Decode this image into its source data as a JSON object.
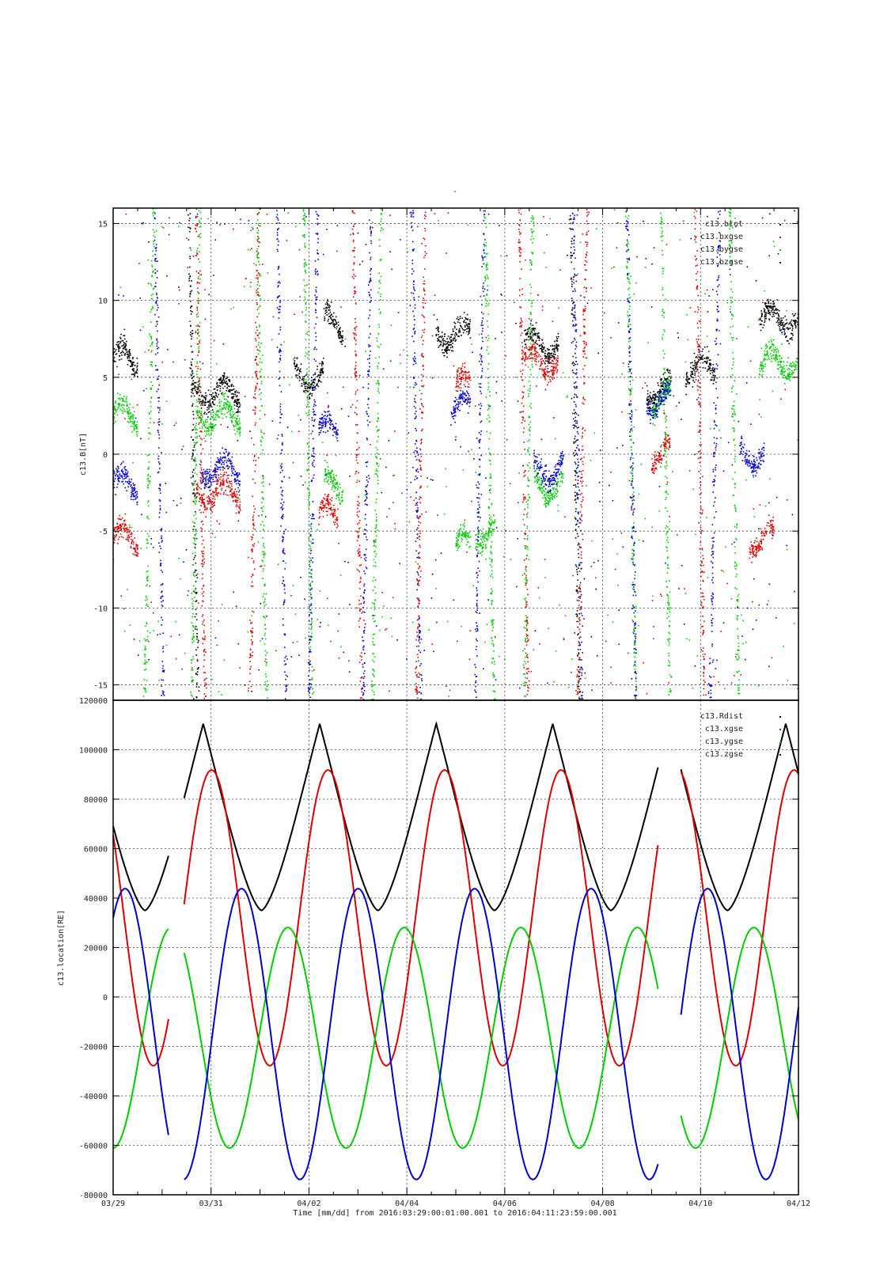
{
  "page_title": "-",
  "x_axis": {
    "tick_labels": [
      "03/29",
      "03/31",
      "04/02",
      "04/04",
      "04/06",
      "04/08",
      "04/10",
      "04/12"
    ],
    "xlabel": "Time [mm/dd]  from 2016:03:29:00:01:00.001  to  2016:04:11:23:59:00.001",
    "range_days": [
      0,
      14
    ]
  },
  "chart_data": [
    {
      "type": "scatter",
      "ylabel": "c13.B[nT]",
      "ylim": [
        -16,
        16
      ],
      "y_ticks": [
        -15,
        -10,
        -5,
        0,
        5,
        10,
        15
      ],
      "grid": true,
      "legend_position": "top-right",
      "series": [
        {
          "name": "c13.btot",
          "color": "#000000"
        },
        {
          "name": "c13.bxgse",
          "color": "#dd0000"
        },
        {
          "name": "c13.bygse",
          "color": "#00cc00"
        },
        {
          "name": "c13.bzgse",
          "color": "#0000cc"
        }
      ],
      "x_unit": "days since 03/29",
      "segments_note": "clusters of dense points",
      "clusters": {
        "btot": [
          [
            0,
            0.5,
            6.2
          ],
          [
            1.6,
            2.6,
            4.0
          ],
          [
            3.7,
            4.3,
            5.0
          ],
          [
            4.3,
            4.7,
            8.5
          ],
          [
            6.6,
            7.3,
            7.8
          ],
          [
            8.4,
            9.1,
            7.2
          ],
          [
            10.9,
            11.4,
            4.2
          ],
          [
            11.7,
            12.3,
            5.5
          ],
          [
            13.2,
            14.0,
            8.8
          ]
        ],
        "bxgse": [
          [
            0,
            0.5,
            -5.5
          ],
          [
            1.7,
            2.6,
            -2.5
          ],
          [
            4.2,
            4.6,
            -4.0
          ],
          [
            7.0,
            7.3,
            4.5
          ],
          [
            8.4,
            9.1,
            6.0
          ],
          [
            11.0,
            11.4,
            0.0
          ],
          [
            13.0,
            13.5,
            -5.5
          ]
        ],
        "bygse": [
          [
            0,
            0.5,
            2.5
          ],
          [
            1.7,
            2.6,
            2.5
          ],
          [
            4.3,
            4.7,
            -2.0
          ],
          [
            7.0,
            7.3,
            -6.0
          ],
          [
            7.4,
            7.8,
            -5.0
          ],
          [
            8.6,
            9.2,
            -2.0
          ],
          [
            11.0,
            11.4,
            3.5
          ],
          [
            13.2,
            14.0,
            6.0
          ]
        ],
        "bzgse": [
          [
            0,
            0.5,
            -2.0
          ],
          [
            1.8,
            2.6,
            -1.0
          ],
          [
            4.2,
            4.6,
            1.5
          ],
          [
            6.9,
            7.3,
            3.0
          ],
          [
            8.6,
            9.2,
            -1.0
          ],
          [
            10.9,
            11.4,
            3.5
          ],
          [
            12.8,
            13.3,
            0.0
          ]
        ]
      }
    },
    {
      "type": "line",
      "ylabel": "c13.location[RE]",
      "ylim": [
        -80000,
        120000
      ],
      "y_ticks": [
        -80000,
        -60000,
        -40000,
        -20000,
        0,
        20000,
        40000,
        60000,
        80000,
        100000,
        120000
      ],
      "grid": true,
      "legend_position": "top-right",
      "series": [
        {
          "name": "c13.Rdist",
          "color": "#000000"
        },
        {
          "name": "c13.xgse",
          "color": "#dd0000"
        },
        {
          "name": "c13.ygse",
          "color": "#00cc00"
        },
        {
          "name": "c13.zgse",
          "color": "#0000cc"
        }
      ],
      "orbit": {
        "period_days": 2.38,
        "perigee_days": [
          0.65,
          3.06,
          5.44,
          7.82,
          10.2,
          12.58
        ],
        "R_min": 35000,
        "R_max": 110500,
        "x_max": 93000,
        "x_min": -29000,
        "y_max": 29000,
        "y_min": -62000,
        "z_max": 45000,
        "z_min": -75000
      },
      "data_gaps_days": [
        [
          1.13,
          1.45
        ],
        [
          11.13,
          11.6
        ]
      ]
    }
  ]
}
